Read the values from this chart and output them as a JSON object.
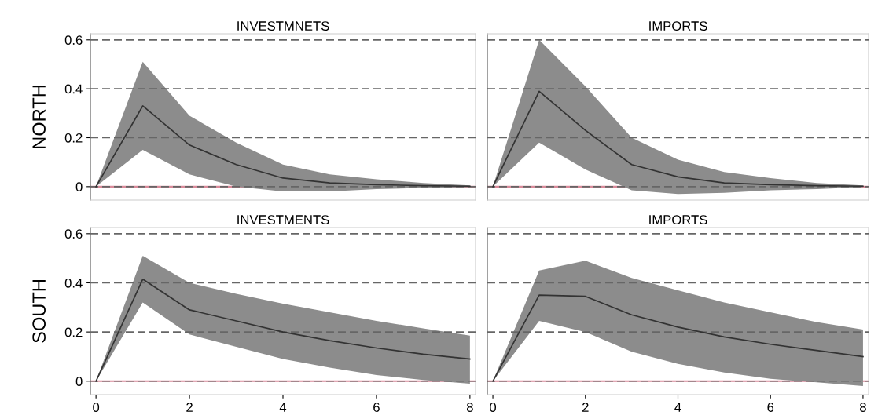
{
  "chart_data": [
    {
      "type": "line",
      "title": "INVESTMNETS",
      "ylabel": "NORTH",
      "x": [
        0,
        1,
        2,
        3,
        4,
        5,
        6,
        7,
        8
      ],
      "xlim": [
        -0.12,
        8.12
      ],
      "xticks": [
        0,
        2,
        4,
        6,
        8
      ],
      "ylim": [
        -0.055,
        0.625
      ],
      "yticks": [
        0,
        0.2,
        0.4,
        0.6
      ],
      "tick_labels": "y",
      "grid": "y",
      "ref_lines": [
        {
          "axis": "y",
          "value": 0,
          "color": "#d98a9a"
        }
      ],
      "series": [
        {
          "color": "#333333",
          "values": [
            0,
            0.33,
            0.17,
            0.09,
            0.035,
            0.015,
            0.008,
            0.004,
            0.002
          ],
          "lower": [
            0,
            0.15,
            0.05,
            0,
            -0.02,
            -0.02,
            -0.01,
            -0.005,
            -0.002
          ],
          "upper": [
            0,
            0.51,
            0.29,
            0.18,
            0.09,
            0.05,
            0.03,
            0.015,
            0.005
          ]
        }
      ]
    },
    {
      "type": "line",
      "title": "IMPORTS",
      "x": [
        0,
        1,
        2,
        3,
        4,
        5,
        6,
        7,
        8
      ],
      "xlim": [
        -0.12,
        8.12
      ],
      "xticks": [
        0,
        2,
        4,
        6,
        8
      ],
      "ylim": [
        -0.055,
        0.625
      ],
      "yticks": [
        0,
        0.2,
        0.4,
        0.6
      ],
      "tick_labels": false,
      "grid": "y",
      "ref_lines": [
        {
          "axis": "y",
          "value": 0,
          "color": "#d98a9a"
        }
      ],
      "series": [
        {
          "color": "#333333",
          "values": [
            0,
            0.39,
            0.23,
            0.09,
            0.04,
            0.015,
            0.008,
            0.004,
            0.002
          ],
          "lower": [
            0,
            0.18,
            0.07,
            -0.015,
            -0.03,
            -0.025,
            -0.015,
            -0.01,
            -0.002
          ],
          "upper": [
            0,
            0.6,
            0.41,
            0.2,
            0.11,
            0.06,
            0.035,
            0.015,
            0.005
          ]
        }
      ]
    },
    {
      "type": "line",
      "title": "INVESTMENTS",
      "ylabel": "SOUTH",
      "x": [
        0,
        1,
        2,
        3,
        4,
        5,
        6,
        7,
        8
      ],
      "xlim": [
        -0.12,
        8.12
      ],
      "xticks": [
        0,
        2,
        4,
        6,
        8
      ],
      "ylim": [
        -0.055,
        0.625
      ],
      "yticks": [
        0,
        0.2,
        0.4,
        0.6
      ],
      "grid": "y",
      "ref_lines": [
        {
          "axis": "y",
          "value": 0,
          "color": "#d98a9a"
        }
      ],
      "series": [
        {
          "color": "#333333",
          "values": [
            0,
            0.415,
            0.29,
            0.245,
            0.2,
            0.165,
            0.135,
            0.11,
            0.09
          ],
          "lower": [
            0,
            0.32,
            0.19,
            0.14,
            0.09,
            0.055,
            0.025,
            0.005,
            -0.01
          ],
          "upper": [
            0,
            0.51,
            0.4,
            0.355,
            0.315,
            0.28,
            0.245,
            0.215,
            0.185
          ]
        }
      ]
    },
    {
      "type": "line",
      "title": "IMPORTS",
      "x": [
        0,
        1,
        2,
        3,
        4,
        5,
        6,
        7,
        8
      ],
      "xlim": [
        -0.12,
        8.12
      ],
      "xticks": [
        0,
        2,
        4,
        6,
        8
      ],
      "ylim": [
        -0.055,
        0.625
      ],
      "yticks": [
        0,
        0.2,
        0.4,
        0.6
      ],
      "tick_labels": "x",
      "grid": "y",
      "ref_lines": [
        {
          "axis": "y",
          "value": 0,
          "color": "#d98a9a"
        }
      ],
      "series": [
        {
          "color": "#333333",
          "values": [
            0,
            0.35,
            0.345,
            0.27,
            0.22,
            0.18,
            0.15,
            0.125,
            0.1
          ],
          "lower": [
            0,
            0.245,
            0.2,
            0.12,
            0.07,
            0.035,
            0.01,
            -0.005,
            -0.02
          ],
          "upper": [
            0,
            0.45,
            0.49,
            0.42,
            0.37,
            0.32,
            0.28,
            0.24,
            0.21
          ]
        }
      ]
    }
  ]
}
